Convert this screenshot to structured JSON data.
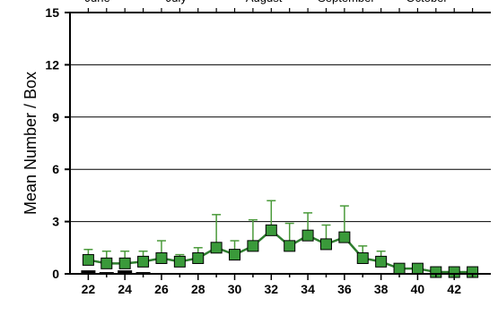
{
  "chart_data": {
    "type": "line",
    "xlabel": "",
    "ylabel": "Mean Number / Box",
    "xlim": [
      21,
      44
    ],
    "ylim": [
      0,
      15
    ],
    "x_ticks": [
      22,
      24,
      26,
      28,
      30,
      32,
      34,
      36,
      38,
      40,
      42
    ],
    "y_ticks": [
      0,
      3,
      6,
      9,
      12,
      15
    ],
    "x_tick_labels": [
      "22",
      "24",
      "26",
      "28",
      "30",
      "32",
      "34",
      "36",
      "38",
      "40",
      "42"
    ],
    "y_tick_labels": [
      "0",
      "3",
      "6",
      "9",
      "12",
      "15"
    ],
    "months": [
      {
        "label": "June",
        "x": 22.5
      },
      {
        "label": "July",
        "x": 26.8
      },
      {
        "label": "August",
        "x": 31.6
      },
      {
        "label": "September",
        "x": 36.1
      },
      {
        "label": "October",
        "x": 40.5
      }
    ],
    "grid": true,
    "series": [
      {
        "x": [
          22,
          23,
          24,
          25,
          26,
          27,
          28,
          29,
          30,
          31,
          32,
          33,
          34,
          35,
          36,
          37,
          38,
          39,
          40,
          41,
          42,
          43
        ],
        "y": [
          0.8,
          0.6,
          0.6,
          0.7,
          0.9,
          0.7,
          0.9,
          1.5,
          1.1,
          1.6,
          2.5,
          1.6,
          2.2,
          1.7,
          2.1,
          0.9,
          0.7,
          0.3,
          0.3,
          0.1,
          0.1,
          0.1
        ],
        "err_upper": [
          1.4,
          1.3,
          1.3,
          1.3,
          1.9,
          1.1,
          1.5,
          3.4,
          1.9,
          3.1,
          4.2,
          2.9,
          3.5,
          2.8,
          3.9,
          1.6,
          1.3,
          0.4,
          0.4,
          0.1,
          0.1,
          0.1
        ]
      }
    ],
    "bars": [
      {
        "x": 22,
        "y": 0.2
      },
      {
        "x": 23,
        "y": 0.1
      },
      {
        "x": 24,
        "y": 0.2
      },
      {
        "x": 25,
        "y": 0.1
      }
    ],
    "colors": {
      "line": "#2e7d2e",
      "marker_fill": "#3a9a3a",
      "marker_stroke": "#000000",
      "error_bar": "#4a9a3a",
      "bars": "#000000",
      "grid": "#000000"
    }
  }
}
